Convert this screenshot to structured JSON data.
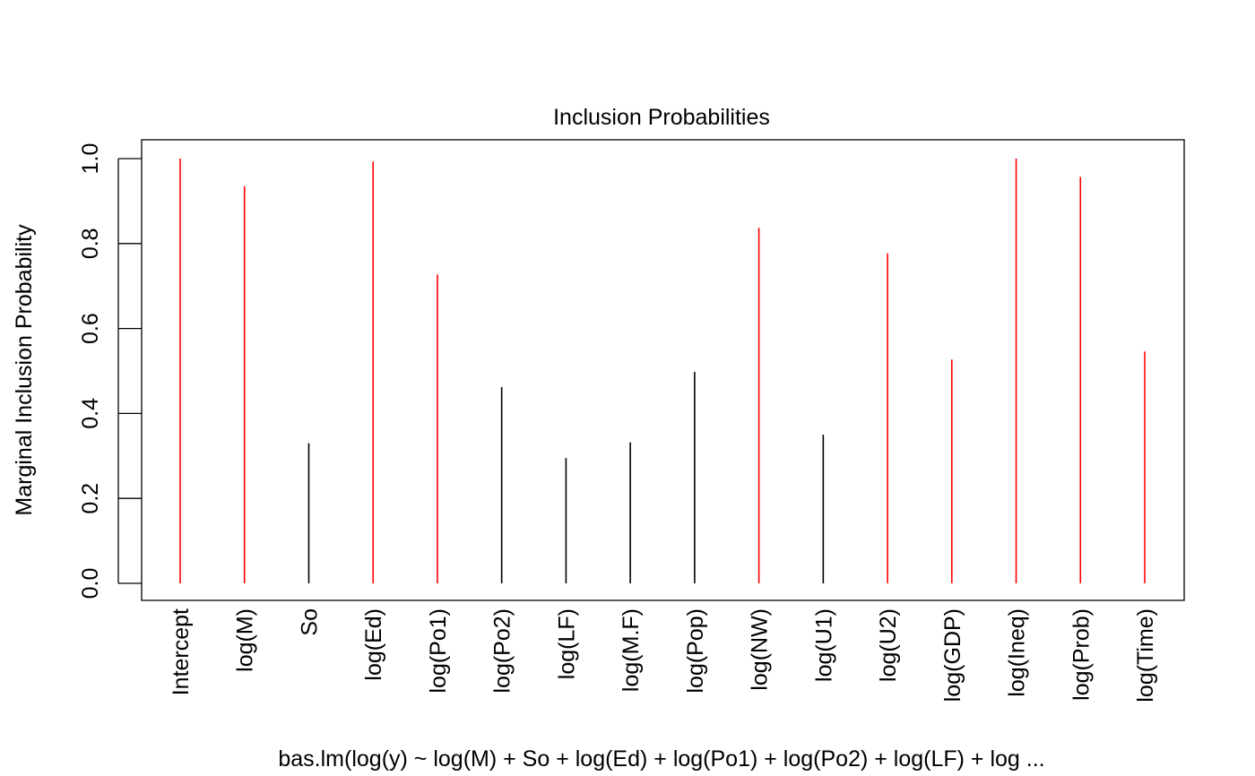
{
  "chart_data": {
    "type": "bar",
    "title": "Inclusion Probabilities",
    "xlabel": "bas.lm(log(y) ~ log(M) + So + log(Ed) + log(Po1) + log(Po2) + log(LF) + log ...",
    "ylabel": "Marginal Inclusion Probability",
    "ylim": [
      0,
      1
    ],
    "yticks": [
      "0.0",
      "0.2",
      "0.4",
      "0.6",
      "0.8",
      "1.0"
    ],
    "grid": false,
    "legend": "none",
    "highlight_threshold": 0.5,
    "colors": {
      "included": "#ff0000",
      "excluded": "#000000"
    },
    "categories": [
      "Intercept",
      "log(M)",
      "So",
      "log(Ed)",
      "log(Po1)",
      "log(Po2)",
      "log(LF)",
      "log(M.F)",
      "log(Pop)",
      "log(NW)",
      "log(U1)",
      "log(U2)",
      "log(GDP)",
      "log(Ineq)",
      "log(Prob)",
      "log(Time)"
    ],
    "values": [
      1.0,
      0.935,
      0.33,
      0.993,
      0.727,
      0.462,
      0.295,
      0.332,
      0.498,
      0.837,
      0.35,
      0.777,
      0.527,
      1.0,
      0.957,
      0.546
    ]
  }
}
